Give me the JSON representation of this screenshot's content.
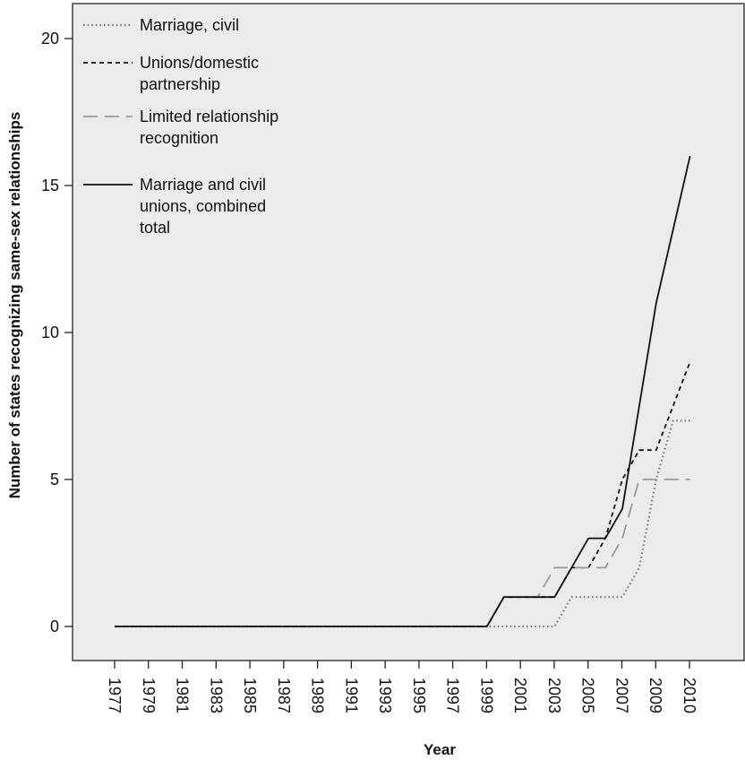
{
  "chart_data": {
    "type": "line",
    "title": "",
    "xlabel": "Year",
    "ylabel": "Number of states recognizing same-sex relationships",
    "xlim": [
      1977,
      2011
    ],
    "ylim": [
      -1,
      20.5
    ],
    "x_ticks": [
      "1977",
      "1979",
      "1981",
      "1983",
      "1985",
      "1987",
      "1989",
      "1991",
      "1993",
      "1995",
      "1997",
      "1999",
      "2001",
      "2003",
      "2005",
      "2007",
      "2009",
      "2010"
    ],
    "y_ticks": [
      0,
      5,
      10,
      15,
      20
    ],
    "legend_position": "top-left",
    "background_color": "#ebebeb",
    "series": [
      {
        "name": "Marriage, civil",
        "style": "dotted",
        "color": "#7a7a7a",
        "points": [
          [
            1977,
            0
          ],
          [
            1999,
            0
          ],
          [
            2002,
            0
          ],
          [
            2003,
            0
          ],
          [
            2004,
            1
          ],
          [
            2006,
            1
          ],
          [
            2007,
            1
          ],
          [
            2008,
            2
          ],
          [
            2009,
            5
          ],
          [
            2010,
            7
          ],
          [
            2011,
            7
          ]
        ]
      },
      {
        "name": "Unions/domestic partnership",
        "style": "short-dash",
        "color": "#111111",
        "points": [
          [
            1977,
            0
          ],
          [
            1999,
            0
          ],
          [
            2000,
            1
          ],
          [
            2002,
            1
          ],
          [
            2003,
            1
          ],
          [
            2004,
            2
          ],
          [
            2005,
            2
          ],
          [
            2006,
            3
          ],
          [
            2007,
            5
          ],
          [
            2008,
            6
          ],
          [
            2009,
            6
          ],
          [
            2010,
            7.5
          ],
          [
            2011,
            9
          ]
        ]
      },
      {
        "name": "Limited relationship recognition",
        "style": "long-dash",
        "color": "#9a9a9a",
        "points": [
          [
            1977,
            0
          ],
          [
            1999,
            0
          ],
          [
            2000,
            1
          ],
          [
            2002,
            1
          ],
          [
            2003,
            2
          ],
          [
            2005,
            2
          ],
          [
            2006,
            2
          ],
          [
            2007,
            3
          ],
          [
            2008,
            5
          ],
          [
            2009,
            5
          ],
          [
            2010,
            5
          ],
          [
            2011,
            5
          ]
        ]
      },
      {
        "name": "Marriage and civil unions, combined total",
        "style": "solid",
        "color": "#111111",
        "points": [
          [
            1977,
            0
          ],
          [
            1999,
            0
          ],
          [
            2000,
            1
          ],
          [
            2003,
            1
          ],
          [
            2004,
            2
          ],
          [
            2005,
            3
          ],
          [
            2006,
            3
          ],
          [
            2007,
            4
          ],
          [
            2008,
            7.5
          ],
          [
            2009,
            11
          ],
          [
            2010,
            13.5
          ],
          [
            2011,
            16
          ]
        ]
      }
    ]
  },
  "legend": [
    {
      "lines": [
        "Marriage, civil"
      ]
    },
    {
      "lines": [
        "Unions/domestic",
        "partnership"
      ]
    },
    {
      "lines": [
        "Limited relationship",
        "recognition"
      ]
    },
    {
      "lines": [
        "Marriage and civil",
        "unions, combined",
        "total"
      ]
    }
  ]
}
